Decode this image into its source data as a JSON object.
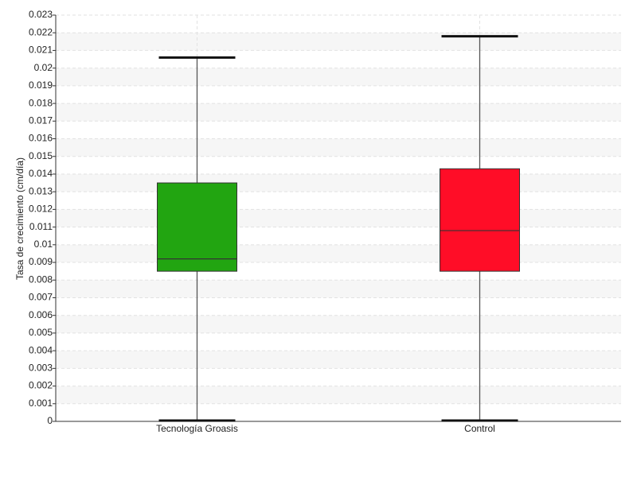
{
  "chart_data": {
    "type": "box",
    "y_label": "Tasa de crecimiento (cm/día)",
    "categories": [
      "Tecnología Groasis",
      "Control"
    ],
    "boxes": [
      {
        "color": "#22a511",
        "min": 0,
        "q1": 0.0085,
        "median": 0.0092,
        "q3": 0.0135,
        "max": 0.0206
      },
      {
        "color": "#ff0d27",
        "min": 0,
        "q1": 0.0085,
        "median": 0.0108,
        "q3": 0.0143,
        "max": 0.0218
      }
    ],
    "ylim": [
      0,
      0.023
    ],
    "yticks": [
      0,
      0.001,
      0.002,
      0.003,
      0.004,
      0.005,
      0.006,
      0.007,
      0.008,
      0.009,
      0.01,
      0.011,
      0.012,
      0.013,
      0.014,
      0.015,
      0.016,
      0.017,
      0.018,
      0.019,
      0.02,
      0.021,
      0.022,
      0.023
    ],
    "grid": true
  }
}
